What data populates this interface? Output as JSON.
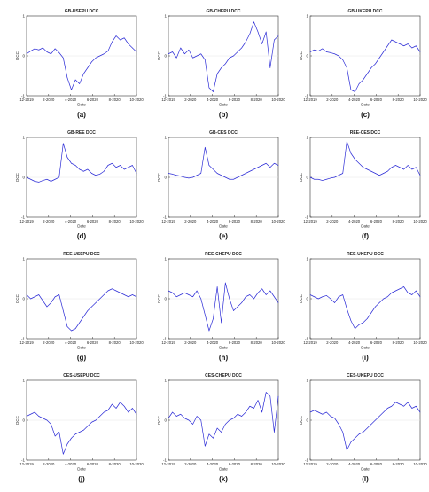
{
  "chart_data": [
    {
      "label": "(a)",
      "title": "GB-USEPU DCC",
      "type": "line",
      "xlabel": "Date",
      "ylabel": "DCC",
      "ylim": [
        -1,
        1
      ],
      "x_ticks": [
        "12-2019",
        "2-2020",
        "4-2020",
        "6-2020",
        "8-2020",
        "10-2020"
      ],
      "y_ticks": [
        "1",
        "0",
        "-1"
      ],
      "series": [
        {
          "color": "#2b2bd6",
          "values": [
            0.05,
            0.12,
            0.18,
            0.15,
            0.2,
            0.1,
            0.05,
            0.18,
            0.08,
            -0.05,
            -0.55,
            -0.85,
            -0.6,
            -0.7,
            -0.45,
            -0.3,
            -0.15,
            -0.05,
            0.0,
            0.05,
            0.12,
            0.35,
            0.5,
            0.4,
            0.45,
            0.3,
            0.2,
            0.1
          ]
        }
      ]
    },
    {
      "label": "(b)",
      "title": "GB-CHEPU DCC",
      "type": "line",
      "xlabel": "Date",
      "ylabel": "DCC",
      "ylim": [
        -1,
        1
      ],
      "x_ticks": [
        "12-2019",
        "2-2020",
        "4-2020",
        "6-2020",
        "8-2020",
        "10-2020"
      ],
      "y_ticks": [
        "1",
        "0",
        "-1"
      ],
      "series": [
        {
          "color": "#2b2bd6",
          "values": [
            0.05,
            0.1,
            -0.05,
            0.2,
            0.05,
            0.15,
            -0.05,
            0.0,
            0.05,
            -0.1,
            -0.8,
            -0.9,
            -0.45,
            -0.3,
            -0.2,
            -0.05,
            0.0,
            0.1,
            0.2,
            0.35,
            0.55,
            0.85,
            0.6,
            0.3,
            0.6,
            -0.3,
            0.4,
            0.5
          ]
        }
      ]
    },
    {
      "label": "(c)",
      "title": "GB-UKEPU DCC",
      "type": "line",
      "xlabel": "Date",
      "ylabel": "DCC",
      "ylim": [
        -1,
        1
      ],
      "x_ticks": [
        "12-2019",
        "2-2020",
        "4-2020",
        "6-2020",
        "8-2020",
        "10-2020"
      ],
      "y_ticks": [
        "1",
        "0",
        "-1"
      ],
      "series": [
        {
          "color": "#2b2bd6",
          "values": [
            0.1,
            0.15,
            0.12,
            0.18,
            0.1,
            0.08,
            0.05,
            0.0,
            -0.1,
            -0.3,
            -0.85,
            -0.9,
            -0.7,
            -0.6,
            -0.45,
            -0.3,
            -0.2,
            -0.05,
            0.1,
            0.25,
            0.4,
            0.35,
            0.3,
            0.25,
            0.3,
            0.2,
            0.25,
            0.1
          ]
        }
      ]
    },
    {
      "label": "(d)",
      "title": "GB-REE DCC",
      "type": "line",
      "xlabel": "Date",
      "ylabel": "DCC",
      "ylim": [
        -1,
        1
      ],
      "x_ticks": [
        "12-2019",
        "2-2020",
        "4-2020",
        "6-2020",
        "8-2020",
        "10-2020"
      ],
      "y_ticks": [
        "1",
        "0",
        "-1"
      ],
      "series": [
        {
          "color": "#2b2bd6",
          "values": [
            0.0,
            -0.05,
            -0.1,
            -0.12,
            -0.08,
            -0.05,
            -0.1,
            -0.05,
            0.0,
            0.85,
            0.5,
            0.35,
            0.3,
            0.2,
            0.15,
            0.2,
            0.1,
            0.05,
            0.08,
            0.15,
            0.3,
            0.35,
            0.25,
            0.3,
            0.2,
            0.25,
            0.3,
            0.1
          ]
        }
      ]
    },
    {
      "label": "(e)",
      "title": "GB-CES DCC",
      "type": "line",
      "xlabel": "Date",
      "ylabel": "DCC",
      "ylim": [
        -1,
        1
      ],
      "x_ticks": [
        "12-2019",
        "2-2020",
        "4-2020",
        "6-2020",
        "8-2020",
        "10-2020"
      ],
      "y_ticks": [
        "1",
        "0",
        "-1"
      ],
      "series": [
        {
          "color": "#2b2bd6",
          "values": [
            0.1,
            0.08,
            0.05,
            0.03,
            0.0,
            -0.02,
            0.0,
            0.05,
            0.1,
            0.75,
            0.3,
            0.2,
            0.1,
            0.05,
            0.0,
            -0.05,
            -0.05,
            0.0,
            0.05,
            0.1,
            0.15,
            0.2,
            0.25,
            0.3,
            0.35,
            0.25,
            0.35,
            0.3
          ]
        }
      ]
    },
    {
      "label": "(f)",
      "title": "REE-CES DCC",
      "type": "line",
      "xlabel": "Date",
      "ylabel": "DCC",
      "ylim": [
        -1,
        1
      ],
      "x_ticks": [
        "12-2019",
        "2-2020",
        "4-2020",
        "6-2020",
        "8-2020",
        "10-2020"
      ],
      "y_ticks": [
        "1",
        "0",
        "-1"
      ],
      "series": [
        {
          "color": "#2b2bd6",
          "values": [
            0.0,
            -0.05,
            -0.05,
            -0.08,
            -0.05,
            -0.02,
            0.0,
            0.05,
            0.1,
            0.9,
            0.6,
            0.45,
            0.35,
            0.25,
            0.2,
            0.15,
            0.1,
            0.05,
            0.1,
            0.15,
            0.25,
            0.3,
            0.25,
            0.2,
            0.3,
            0.2,
            0.25,
            0.05
          ]
        }
      ]
    },
    {
      "label": "(g)",
      "title": "REE-USEPU DCC",
      "type": "line",
      "xlabel": "Date",
      "ylabel": "DCC",
      "ylim": [
        -1,
        1
      ],
      "x_ticks": [
        "12-2019",
        "2-2020",
        "4-2020",
        "6-2020",
        "8-2020",
        "10-2020"
      ],
      "y_ticks": [
        "1",
        "0",
        "-1"
      ],
      "series": [
        {
          "color": "#2b2bd6",
          "values": [
            0.1,
            0.0,
            0.05,
            0.1,
            -0.05,
            -0.2,
            -0.1,
            0.05,
            0.1,
            -0.3,
            -0.7,
            -0.8,
            -0.75,
            -0.6,
            -0.45,
            -0.3,
            -0.2,
            -0.1,
            0.0,
            0.1,
            0.2,
            0.25,
            0.2,
            0.15,
            0.1,
            0.05,
            0.1,
            0.05
          ]
        }
      ]
    },
    {
      "label": "(h)",
      "title": "REE-CHEPU DCC",
      "type": "line",
      "xlabel": "Date",
      "ylabel": "DCC",
      "ylim": [
        -1,
        1
      ],
      "x_ticks": [
        "12-2019",
        "2-2020",
        "4-2020",
        "6-2020",
        "8-2020",
        "10-2020"
      ],
      "y_ticks": [
        "1",
        "0",
        "-1"
      ],
      "series": [
        {
          "color": "#2b2bd6",
          "values": [
            0.2,
            0.15,
            0.05,
            0.1,
            0.15,
            0.1,
            0.05,
            0.2,
            0.0,
            -0.4,
            -0.8,
            -0.5,
            0.3,
            -0.6,
            0.4,
            0.0,
            -0.3,
            -0.2,
            -0.1,
            0.05,
            0.1,
            0.0,
            0.15,
            0.25,
            0.1,
            0.2,
            0.05,
            -0.1
          ]
        }
      ]
    },
    {
      "label": "(i)",
      "title": "REE-UKEPU DCC",
      "type": "line",
      "xlabel": "Date",
      "ylabel": "DCC",
      "ylim": [
        -1,
        1
      ],
      "x_ticks": [
        "12-2019",
        "2-2020",
        "4-2020",
        "6-2020",
        "8-2020",
        "10-2020"
      ],
      "y_ticks": [
        "1",
        "0",
        "-1"
      ],
      "series": [
        {
          "color": "#2b2bd6",
          "values": [
            0.1,
            0.05,
            0.0,
            0.05,
            0.08,
            0.0,
            -0.1,
            0.05,
            0.1,
            -0.25,
            -0.55,
            -0.75,
            -0.65,
            -0.6,
            -0.5,
            -0.35,
            -0.2,
            -0.1,
            0.0,
            0.05,
            0.15,
            0.2,
            0.25,
            0.3,
            0.15,
            0.1,
            0.2,
            0.05
          ]
        }
      ]
    },
    {
      "label": "(j)",
      "title": "CES-USEPU DCC",
      "type": "line",
      "xlabel": "Date",
      "ylabel": "DCC",
      "ylim": [
        -1,
        1
      ],
      "x_ticks": [
        "12-2019",
        "2-2020",
        "4-2020",
        "6-2020",
        "8-2020",
        "10-2020"
      ],
      "y_ticks": [
        "1",
        "0",
        "-1"
      ],
      "series": [
        {
          "color": "#2b2bd6",
          "values": [
            0.1,
            0.15,
            0.2,
            0.1,
            0.05,
            0.0,
            -0.1,
            -0.4,
            -0.3,
            -0.85,
            -0.6,
            -0.45,
            -0.35,
            -0.3,
            -0.25,
            -0.15,
            -0.05,
            0.0,
            0.1,
            0.2,
            0.25,
            0.4,
            0.3,
            0.45,
            0.35,
            0.2,
            0.3,
            0.15
          ]
        }
      ]
    },
    {
      "label": "(k)",
      "title": "CES-CHEPU DCC",
      "type": "line",
      "xlabel": "Date",
      "ylabel": "DCC",
      "ylim": [
        -1,
        1
      ],
      "x_ticks": [
        "12-2019",
        "2-2020",
        "4-2020",
        "6-2020",
        "8-2020",
        "10-2020"
      ],
      "y_ticks": [
        "1",
        "0",
        "-1"
      ],
      "series": [
        {
          "color": "#2b2bd6",
          "values": [
            0.05,
            0.2,
            0.1,
            0.15,
            0.05,
            0.0,
            -0.1,
            0.1,
            0.0,
            -0.65,
            -0.35,
            -0.45,
            -0.2,
            -0.3,
            -0.1,
            0.0,
            0.05,
            0.15,
            0.1,
            0.2,
            0.35,
            0.3,
            0.5,
            0.2,
            0.7,
            0.6,
            -0.3,
            0.6
          ]
        }
      ]
    },
    {
      "label": "(l)",
      "title": "CES-UKEPU DCC",
      "type": "line",
      "xlabel": "Date",
      "ylabel": "DCC",
      "ylim": [
        -1,
        1
      ],
      "x_ticks": [
        "12-2019",
        "2-2020",
        "4-2020",
        "6-2020",
        "8-2020",
        "10-2020"
      ],
      "y_ticks": [
        "1",
        "0",
        "-1"
      ],
      "series": [
        {
          "color": "#2b2bd6",
          "values": [
            0.2,
            0.25,
            0.2,
            0.15,
            0.2,
            0.1,
            0.05,
            -0.1,
            -0.3,
            -0.75,
            -0.55,
            -0.45,
            -0.35,
            -0.3,
            -0.2,
            -0.1,
            0.0,
            0.1,
            0.2,
            0.3,
            0.35,
            0.45,
            0.4,
            0.35,
            0.45,
            0.3,
            0.35,
            0.2
          ]
        }
      ]
    }
  ]
}
